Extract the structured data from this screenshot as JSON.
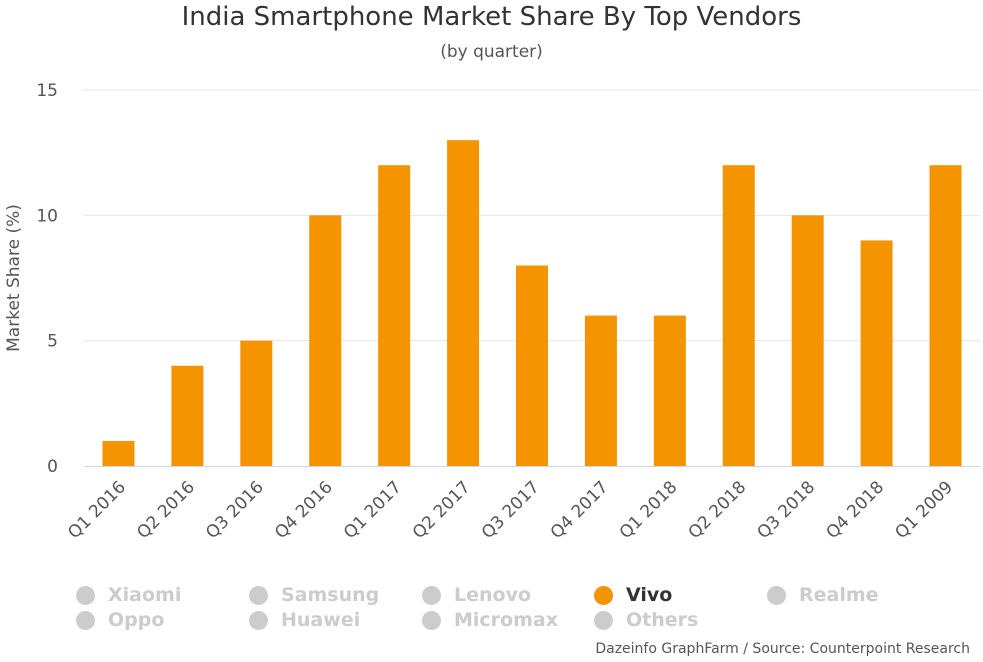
{
  "chart_data": {
    "type": "bar",
    "title": "India Smartphone Market Share By Top Vendors",
    "subtitle": "(by quarter)",
    "ylabel": "Market Share (%)",
    "xlabel": "",
    "ylim": [
      0,
      15
    ],
    "yticks": [
      "0",
      "5",
      "10",
      "15"
    ],
    "grid": true,
    "categories": [
      "Q1 2016",
      "Q2 2016",
      "Q3 2016",
      "Q4 2016",
      "Q1 2017",
      "Q2 2017",
      "Q3 2017",
      "Q4 2017",
      "Q1 2018",
      "Q2 2018",
      "Q3 2018",
      "Q4 2018",
      "Q1 2009"
    ],
    "series": [
      {
        "name": "Vivo",
        "color": "#f49400",
        "values": [
          1,
          4,
          5,
          10,
          12,
          13,
          8,
          6,
          6,
          12,
          10,
          9,
          12
        ]
      }
    ],
    "legend": {
      "placement": "bottom",
      "items": [
        {
          "label": "Xiaomi",
          "active": false
        },
        {
          "label": "Samsung",
          "active": false
        },
        {
          "label": "Lenovo",
          "active": false
        },
        {
          "label": "Vivo",
          "active": true
        },
        {
          "label": "Realme",
          "active": false
        },
        {
          "label": "Oppo",
          "active": false
        },
        {
          "label": "Huawei",
          "active": false
        },
        {
          "label": "Micromax",
          "active": false
        },
        {
          "label": "Others",
          "active": false
        }
      ]
    },
    "credits": "Dazeinfo GraphFarm / Source: Counterpoint Research"
  },
  "colors": {
    "bar": "#f49400",
    "inactive_legend": "#cccccc",
    "grid": "#e6e6e6"
  }
}
